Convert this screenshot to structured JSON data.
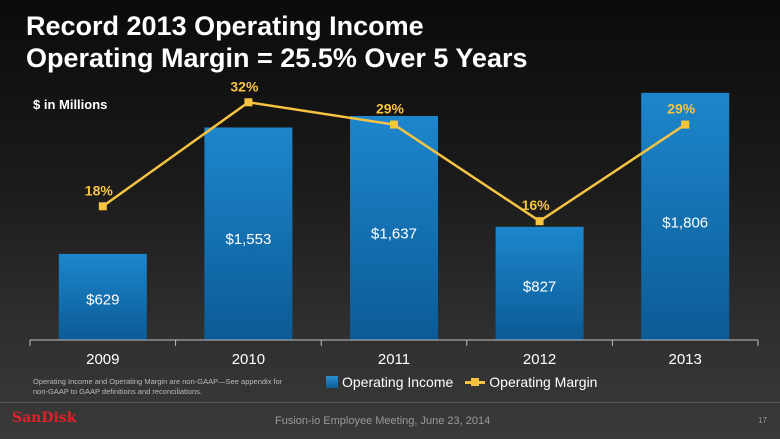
{
  "title_line1": "Record 2013 Operating Income",
  "title_line2": "Operating Margin = 25.5% Over 5 Years",
  "footnote": "Operating Income and Operating Margin are non-GAAP—See appendix for non-GAAP to GAAP definitions and reconciliations.",
  "footer": {
    "logo": "SanDisk",
    "meeting": "Fusion-io Employee Meeting, June 23, 2014",
    "page": "17"
  },
  "colors": {
    "bar": "#1a7bbf",
    "line": "#f6c342",
    "line_label": "#f6c342"
  },
  "chart_data": {
    "type": "bar",
    "unit_label": "$ in Millions",
    "categories": [
      "2009",
      "2010",
      "2011",
      "2012",
      "2013"
    ],
    "series": [
      {
        "name": "Operating Income",
        "type": "bar",
        "values": [
          629,
          1553,
          1637,
          827,
          1806
        ],
        "labels": [
          "$629",
          "$1,553",
          "$1,637",
          "$827",
          "$1,806"
        ]
      },
      {
        "name": "Operating Margin",
        "type": "line",
        "values": [
          18,
          32,
          29,
          16,
          29
        ],
        "labels": [
          "18%",
          "32%",
          "29%",
          "16%",
          "29%"
        ]
      }
    ],
    "ylim": [
      0,
      1900
    ],
    "y2lim": [
      0,
      35
    ],
    "legend": "bottom-center",
    "grid": false
  }
}
